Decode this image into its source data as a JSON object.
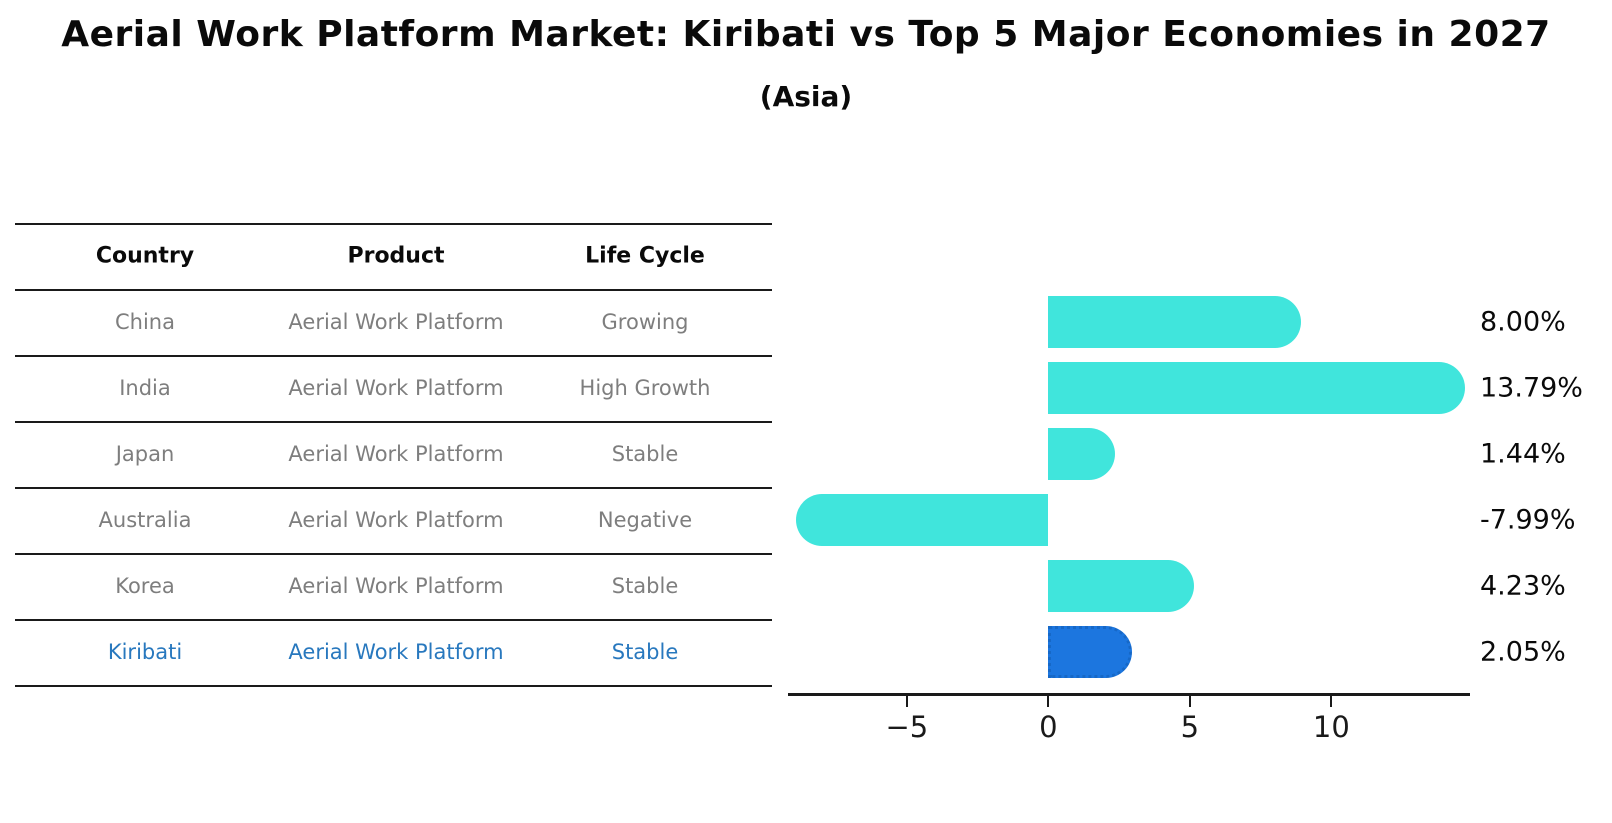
{
  "title": "Aerial Work Platform Market: Kiribati vs Top 5 Major Economies in 2027",
  "subtitle": "(Asia)",
  "table": {
    "headers": [
      "Country",
      "Product",
      "Life Cycle"
    ],
    "rows": [
      [
        "China",
        "Aerial Work Platform",
        "Growing"
      ],
      [
        "India",
        "Aerial Work Platform",
        "High Growth"
      ],
      [
        "Japan",
        "Aerial Work Platform",
        "Stable"
      ],
      [
        "Australia",
        "Aerial Work Platform",
        "Negative"
      ],
      [
        "Korea",
        "Aerial Work Platform",
        "Stable"
      ],
      [
        "Kiribati",
        "Aerial Work Platform",
        "Stable"
      ]
    ],
    "highlight_row": 5
  },
  "chart_data": {
    "type": "bar",
    "orientation": "horizontal",
    "categories": [
      "China",
      "India",
      "Japan",
      "Australia",
      "Korea",
      "Kiribati"
    ],
    "values": [
      8.0,
      13.79,
      1.44,
      -7.99,
      4.23,
      2.05
    ],
    "value_labels": [
      "8.00%",
      "13.79%",
      "1.44%",
      "-7.99%",
      "4.23%",
      "2.05%"
    ],
    "highlight_index": 5,
    "x_tick_values": [
      -5,
      0,
      5,
      10
    ],
    "x_tick_labels": [
      "−5",
      "0",
      "5",
      "10"
    ],
    "xlim": [
      -9.2,
      14.9
    ],
    "grid": false,
    "legend_position": "none",
    "bar_color": "#40E5DC",
    "highlight_bar_color": "#1C76DF",
    "highlight_text_color": "#2878BE",
    "body_text_color": "#7E7E7E"
  }
}
